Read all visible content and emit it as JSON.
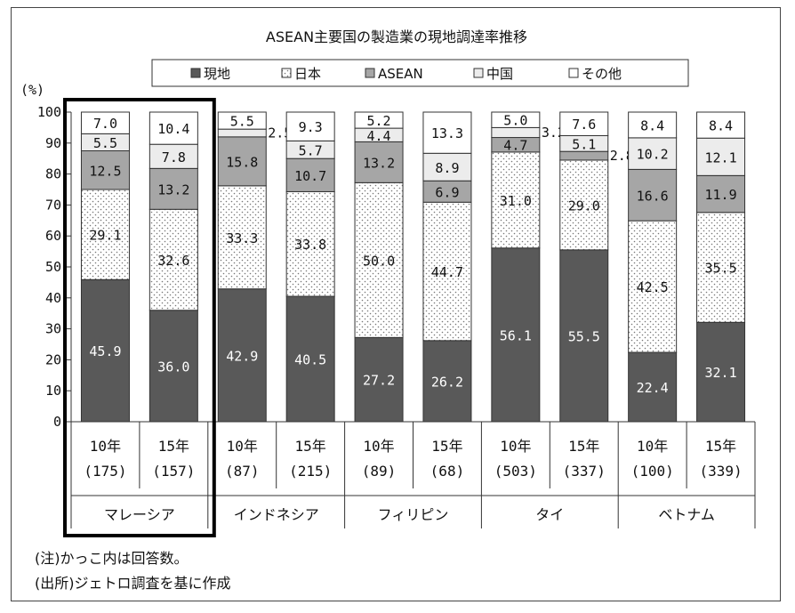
{
  "chart_data": {
    "type": "bar",
    "stacked": true,
    "title": "ASEAN主要国の製造業の現地調達率推移",
    "ylabel": "(%)",
    "ylim": [
      0,
      100
    ],
    "yticks": [
      "0",
      "10",
      "20",
      "30",
      "40",
      "50",
      "60",
      "70",
      "80",
      "90",
      "100"
    ],
    "legend_position": "top",
    "categories": [
      "10年",
      "15年",
      "10年",
      "15年",
      "10年",
      "15年",
      "10年",
      "15年",
      "10年",
      "15年"
    ],
    "respondents": [
      "(175)",
      "(157)",
      "(87)",
      "(215)",
      "(89)",
      "(68)",
      "(503)",
      "(337)",
      "(100)",
      "(339)"
    ],
    "groups": [
      {
        "label": "マレーシア",
        "highlighted": true
      },
      {
        "label": "インドネシア"
      },
      {
        "label": "フィリピン"
      },
      {
        "label": "タイ"
      },
      {
        "label": "ベトナム"
      }
    ],
    "series": [
      {
        "name": "現地",
        "color": "#595959",
        "pattern": "solid",
        "values": [
          45.9,
          36.0,
          42.9,
          40.5,
          27.2,
          26.2,
          56.1,
          55.5,
          22.4,
          32.1
        ]
      },
      {
        "name": "日本",
        "color": "#ffffff",
        "pattern": "dots",
        "values": [
          29.1,
          32.6,
          33.3,
          33.8,
          50.0,
          44.7,
          31.0,
          29.0,
          42.5,
          35.5
        ]
      },
      {
        "name": "ASEAN",
        "color": "#a6a6a6",
        "pattern": "solid",
        "values": [
          12.5,
          13.2,
          15.8,
          10.7,
          13.2,
          6.9,
          4.7,
          2.8,
          16.6,
          11.9
        ]
      },
      {
        "name": "中国",
        "color": "#ececec",
        "pattern": "solid",
        "values": [
          5.5,
          7.8,
          2.5,
          5.7,
          4.4,
          8.9,
          3.2,
          5.1,
          10.2,
          12.1
        ]
      },
      {
        "name": "その他",
        "color": "#ffffff",
        "pattern": "solid",
        "values": [
          7.0,
          10.4,
          5.5,
          9.3,
          5.2,
          13.3,
          5.0,
          7.6,
          8.4,
          8.4
        ]
      }
    ]
  },
  "notes": [
    "(注)かっこ内は回答数。",
    "(出所)ジェトロ調査を基に作成"
  ]
}
